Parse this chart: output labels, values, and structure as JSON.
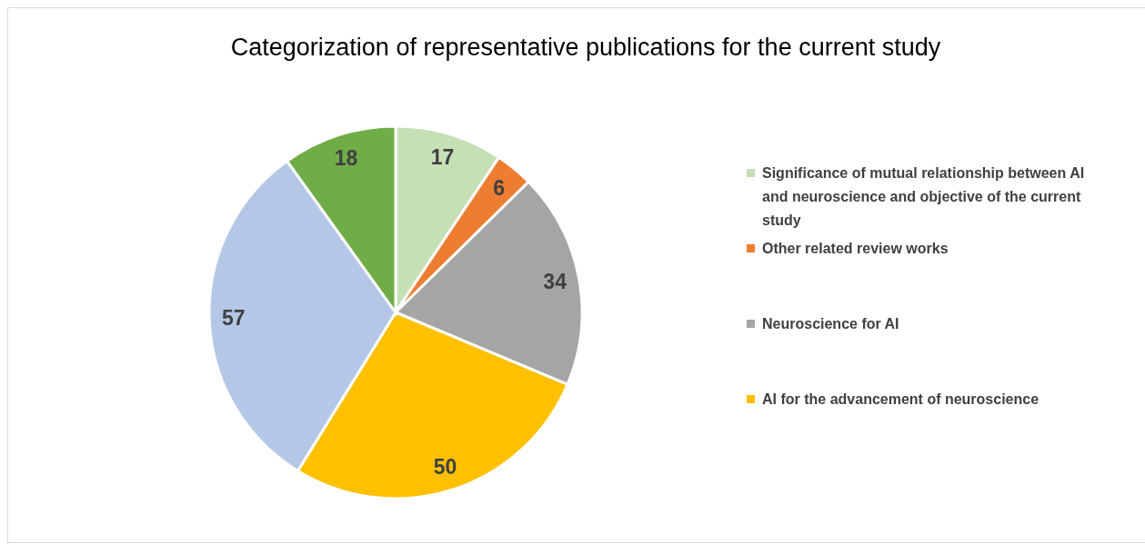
{
  "chart_data": {
    "type": "pie",
    "title": "Categorization of representative publications for the current study",
    "categories": [
      "Significance of mutual relationship between AI and neuroscience and objective of the current study",
      "Other related review works",
      "Neuroscience for AI",
      "AI for the advancement of neuroscience",
      null,
      null
    ],
    "values": [
      17,
      6,
      34,
      50,
      57,
      18
    ],
    "colors": [
      "#c5e0b4",
      "#ed7d31",
      "#a5a5a5",
      "#ffc000",
      "#b4c7e7",
      "#70ad47"
    ],
    "data_labels": true,
    "legend": "right"
  }
}
